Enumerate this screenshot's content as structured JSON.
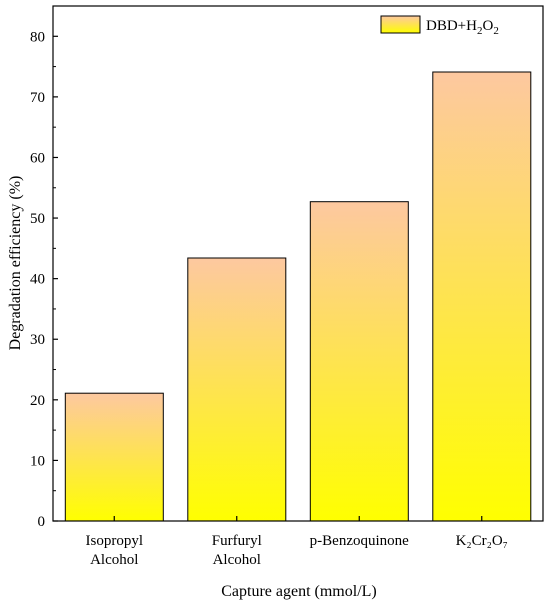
{
  "colors": {
    "bar_top": "#FDC8A0",
    "bar_bottom": "#FFFF00",
    "bar_stroke": "#000000",
    "axis": "#000000"
  },
  "chart_data": {
    "type": "bar",
    "categories": [
      [
        "Isopropyl",
        "Alcohol"
      ],
      [
        "Furfuryl",
        "Alcohol"
      ],
      [
        "p-Benzoquinone"
      ],
      [
        "K₂Cr₂O₇"
      ]
    ],
    "series": [
      {
        "name": "DBD+H2O2",
        "values": [
          21.1,
          43.4,
          52.7,
          74.1
        ]
      }
    ],
    "xlabel": "Capture agent (mmol/L)",
    "ylabel": "Degradation efficiency (%)",
    "ylim": [
      0,
      85
    ],
    "yticks": [
      0,
      10,
      20,
      30,
      40,
      50,
      60,
      70,
      80
    ],
    "legend": {
      "position": "top-right",
      "label_parts": [
        "DBD+H",
        "2",
        "O",
        "2"
      ]
    },
    "grid": false
  }
}
